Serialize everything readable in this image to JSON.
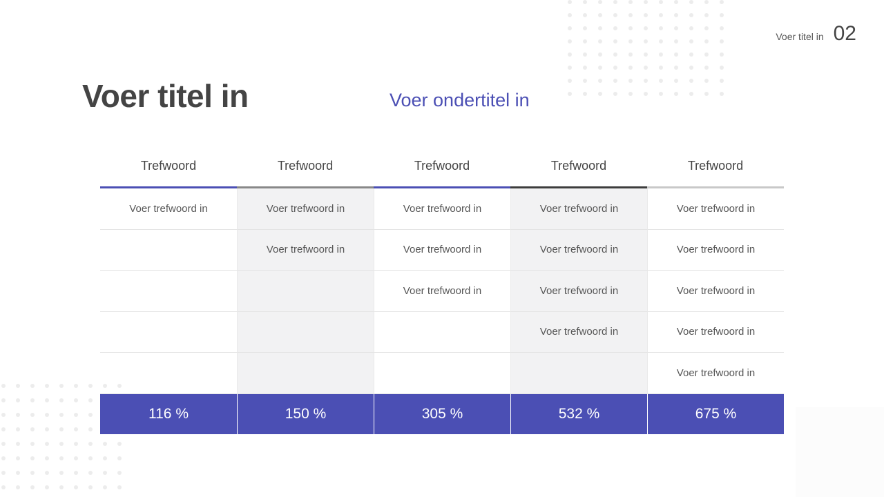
{
  "header": {
    "small_title": "Voer titel in",
    "page_number": "02"
  },
  "title": "Voer titel in",
  "subtitle": "Voer ondertitel in",
  "colors": {
    "accent": "#4b4fb4",
    "gray": "#888888",
    "dark": "#3d3d3d",
    "light_gray": "#c8c8c8",
    "shade": "#f2f2f3"
  },
  "table": {
    "columns": [
      {
        "header": "Trefwoord",
        "underline": "#4b4fb4",
        "cells": [
          "Voer trefwoord in",
          "",
          "",
          "",
          ""
        ],
        "total": "116 %"
      },
      {
        "header": "Trefwoord",
        "underline": "#888888",
        "cells": [
          "Voer trefwoord in",
          "Voer trefwoord in",
          "",
          "",
          ""
        ],
        "total": "150 %"
      },
      {
        "header": "Trefwoord",
        "underline": "#4b4fb4",
        "cells": [
          "Voer trefwoord in",
          "Voer trefwoord in",
          "Voer trefwoord in",
          "",
          ""
        ],
        "total": "305 %"
      },
      {
        "header": "Trefwoord",
        "underline": "#3d3d3d",
        "cells": [
          "Voer trefwoord in",
          "Voer trefwoord in",
          "Voer trefwoord in",
          "Voer trefwoord in",
          ""
        ],
        "total": "532 %"
      },
      {
        "header": "Trefwoord",
        "underline": "#c8c8c8",
        "cells": [
          "Voer trefwoord in",
          "Voer trefwoord in",
          "Voer trefwoord in",
          "Voer trefwoord in",
          "Voer trefwoord in"
        ],
        "total": "675 %"
      }
    ]
  }
}
